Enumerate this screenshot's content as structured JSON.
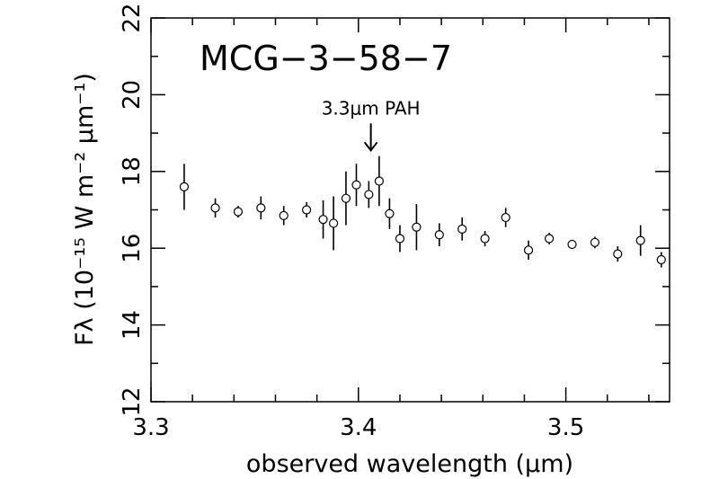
{
  "chart_data": {
    "type": "scatter",
    "title": "MCG−3−58−7",
    "xlabel": "observed wavelength (μm)",
    "ylabel": "Fλ (10⁻¹⁵ W m⁻² μm⁻¹)",
    "xlim": [
      3.3,
      3.55
    ],
    "ylim": [
      12,
      22
    ],
    "x_ticks": [
      3.3,
      3.4,
      3.5
    ],
    "x_tick_labels": [
      "3.3",
      "3.4",
      "3.5"
    ],
    "y_ticks": [
      12,
      14,
      16,
      18,
      20,
      22
    ],
    "y_tick_labels": [
      "12",
      "14",
      "16",
      "18",
      "20",
      "22"
    ],
    "grid": false,
    "annotation": {
      "text": "3.3μm PAH",
      "x": 3.406,
      "y": 18.55
    },
    "series": [
      {
        "points": [
          {
            "x": 3.316,
            "y": 17.6,
            "err": 0.6
          },
          {
            "x": 3.331,
            "y": 17.05,
            "err": 0.25
          },
          {
            "x": 3.342,
            "y": 16.95,
            "err": 0.15
          },
          {
            "x": 3.353,
            "y": 17.05,
            "err": 0.3
          },
          {
            "x": 3.364,
            "y": 16.85,
            "err": 0.25
          },
          {
            "x": 3.375,
            "y": 17.0,
            "err": 0.2
          },
          {
            "x": 3.383,
            "y": 16.75,
            "err": 0.5
          },
          {
            "x": 3.388,
            "y": 16.65,
            "err": 0.7
          },
          {
            "x": 3.394,
            "y": 17.3,
            "err": 0.7
          },
          {
            "x": 3.399,
            "y": 17.65,
            "err": 0.55
          },
          {
            "x": 3.405,
            "y": 17.4,
            "err": 0.35
          },
          {
            "x": 3.41,
            "y": 17.75,
            "err": 0.65
          },
          {
            "x": 3.415,
            "y": 16.9,
            "err": 0.4
          },
          {
            "x": 3.42,
            "y": 16.25,
            "err": 0.35
          },
          {
            "x": 3.428,
            "y": 16.55,
            "err": 0.6
          },
          {
            "x": 3.439,
            "y": 16.35,
            "err": 0.3
          },
          {
            "x": 3.45,
            "y": 16.5,
            "err": 0.3
          },
          {
            "x": 3.461,
            "y": 16.25,
            "err": 0.2
          },
          {
            "x": 3.471,
            "y": 16.8,
            "err": 0.25
          },
          {
            "x": 3.482,
            "y": 15.95,
            "err": 0.25
          },
          {
            "x": 3.492,
            "y": 16.25,
            "err": 0.15
          },
          {
            "x": 3.503,
            "y": 16.1,
            "err": 0.12
          },
          {
            "x": 3.514,
            "y": 16.15,
            "err": 0.15
          },
          {
            "x": 3.525,
            "y": 15.85,
            "err": 0.2
          },
          {
            "x": 3.536,
            "y": 16.2,
            "err": 0.4
          },
          {
            "x": 3.546,
            "y": 15.7,
            "err": 0.2
          }
        ]
      }
    ]
  }
}
